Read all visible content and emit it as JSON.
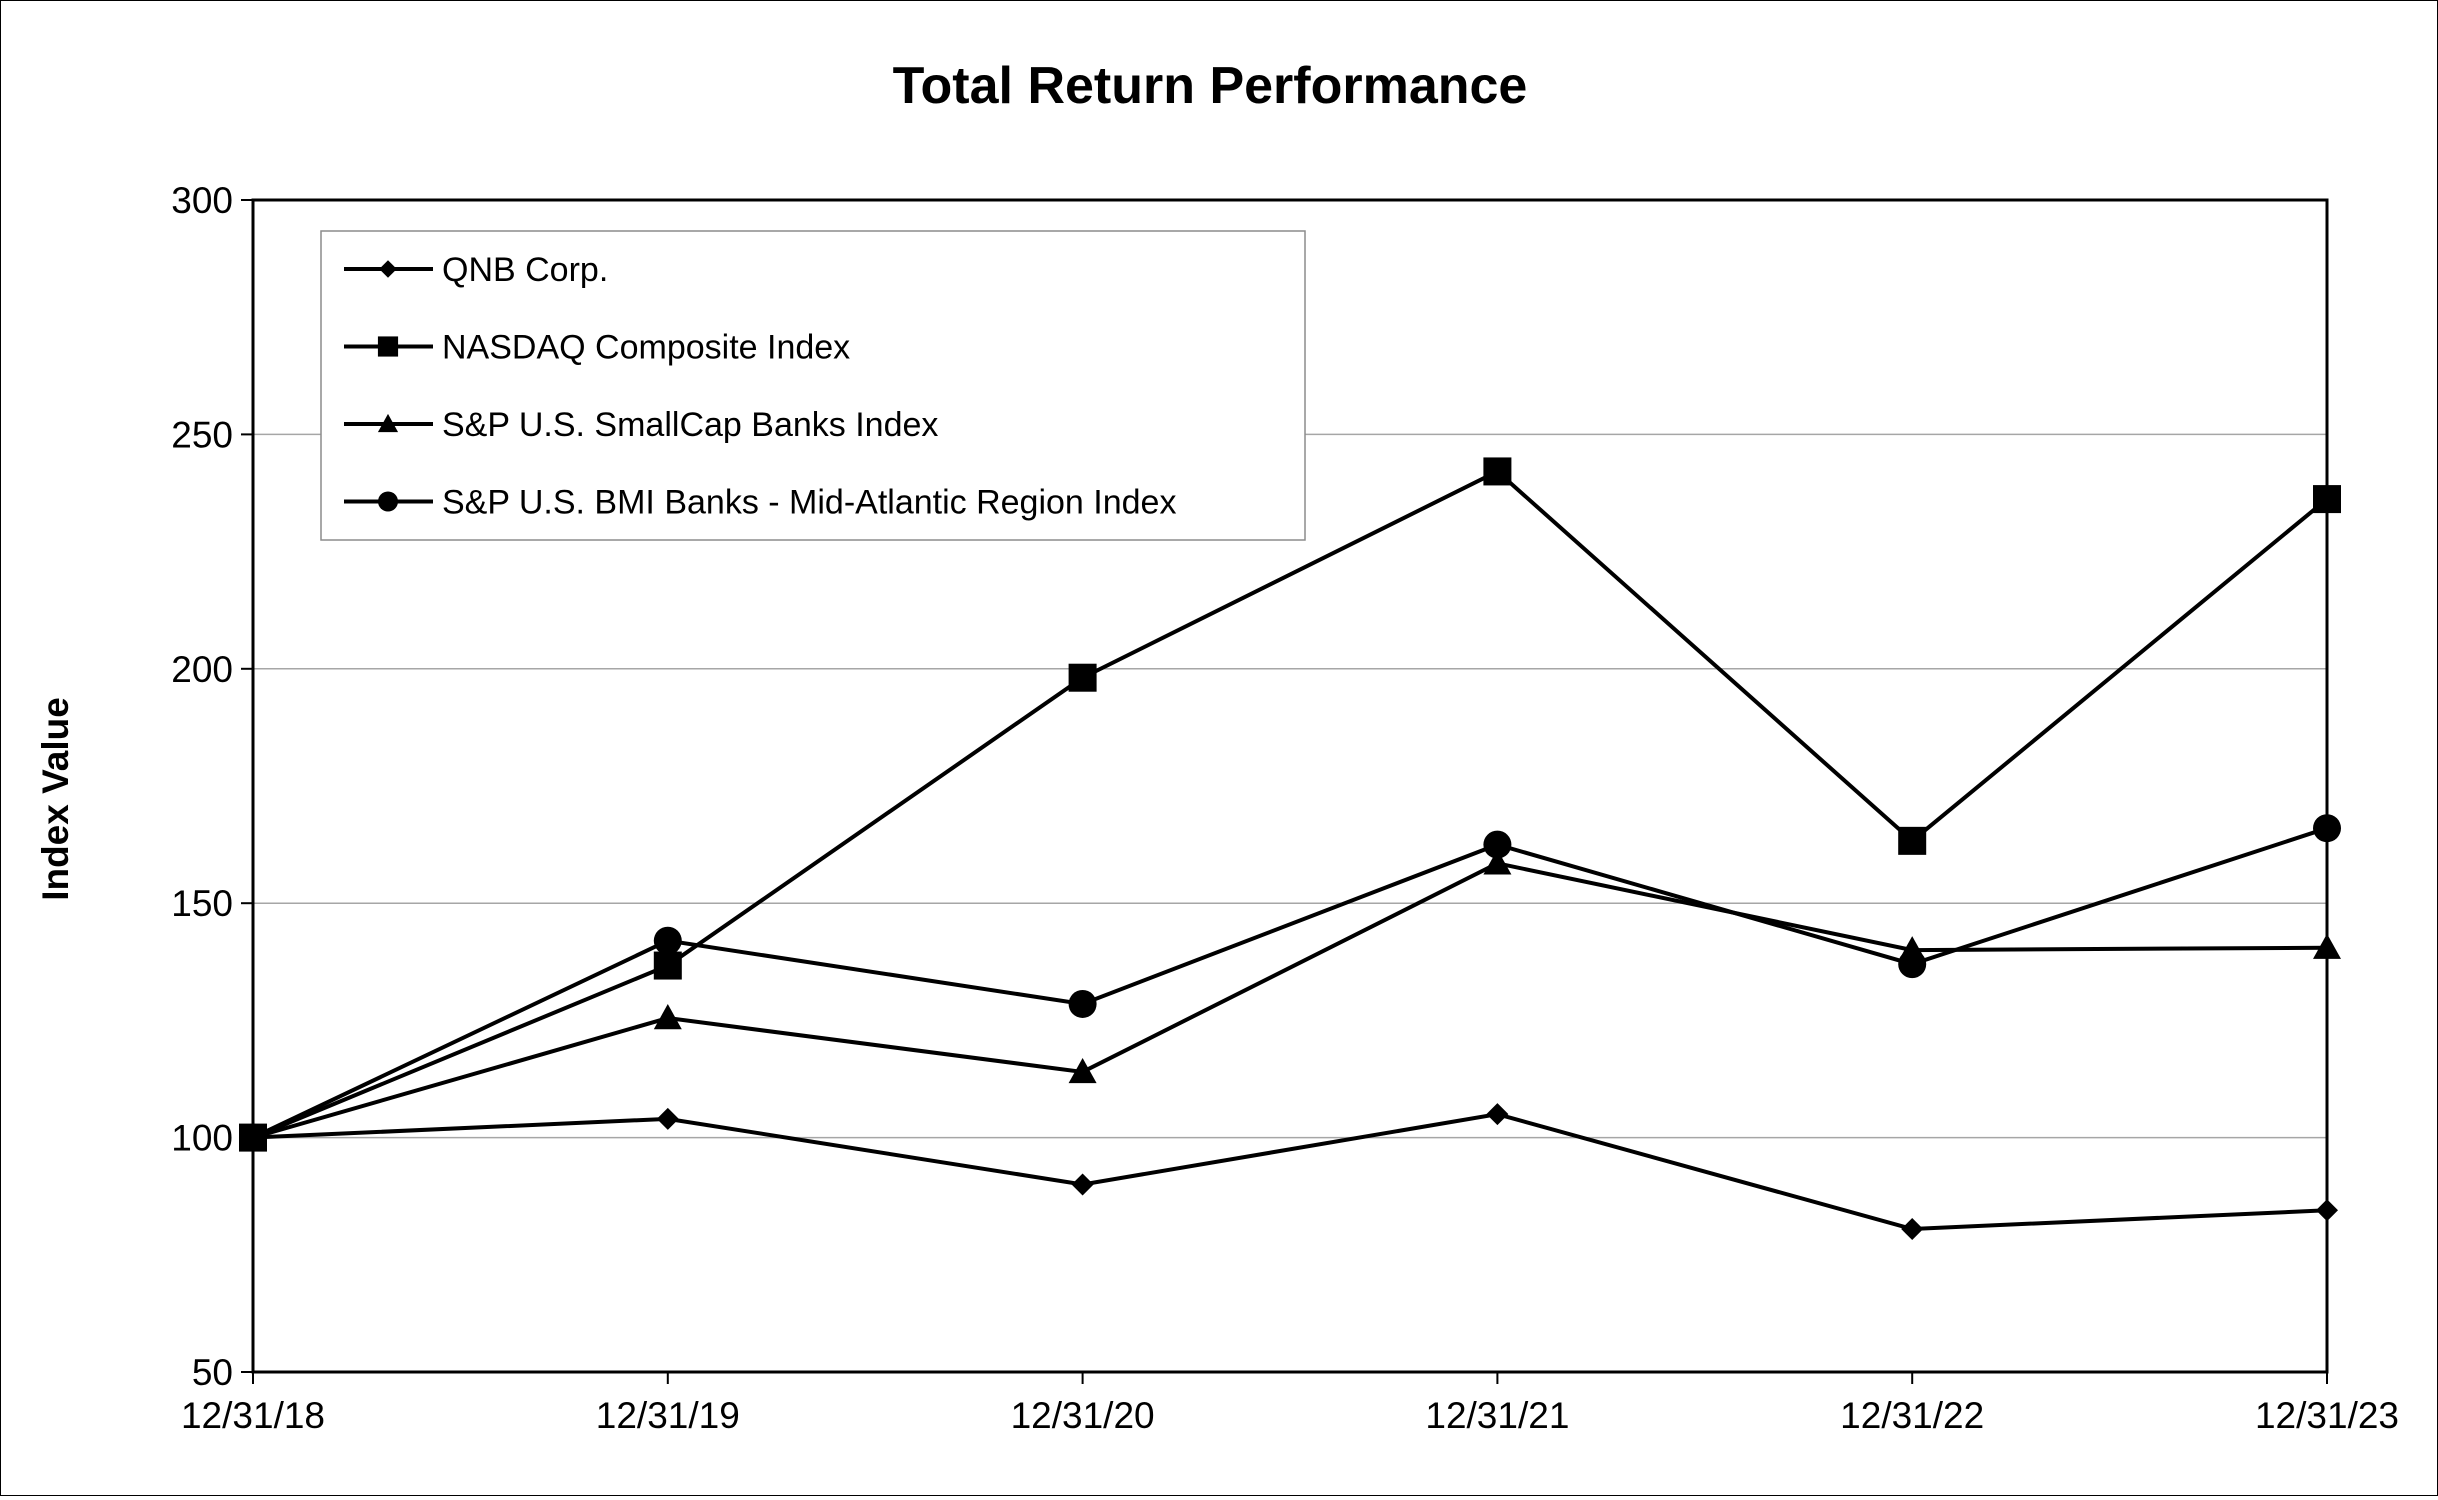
{
  "chart_data": {
    "type": "line",
    "title": "Total Return Performance",
    "xlabel": "",
    "ylabel": "Index Value",
    "categories": [
      "12/31/18",
      "12/31/19",
      "12/31/20",
      "12/31/21",
      "12/31/22",
      "12/31/23"
    ],
    "ylim": [
      50,
      300
    ],
    "yticks": [
      50,
      100,
      150,
      200,
      250,
      300
    ],
    "grid": true,
    "legend_position": "top-left",
    "series": [
      {
        "name": "QNB Corp.",
        "marker": "diamond",
        "values": [
          100,
          104,
          90,
          105,
          80.5,
          84.5
        ]
      },
      {
        "name": "NASDAQ Composite Index",
        "marker": "square",
        "values": [
          100,
          136.7,
          198.1,
          242.1,
          163.3,
          236.2
        ]
      },
      {
        "name": "S&P U.S. SmallCap Banks Index",
        "marker": "triangle",
        "values": [
          100,
          125.5,
          114,
          158.5,
          140,
          140.5
        ]
      },
      {
        "name": "S&P U.S. BMI Banks - Mid-Atlantic Region Index",
        "marker": "circle",
        "values": [
          100,
          142,
          128.5,
          162.5,
          137,
          166
        ]
      }
    ],
    "colors": {
      "line": "#000000",
      "grid": "#a6a6a6",
      "background": "#ffffff"
    }
  }
}
